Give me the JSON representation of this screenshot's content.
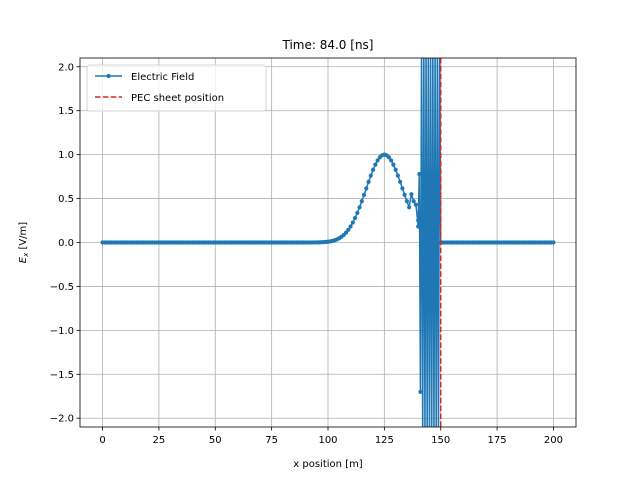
{
  "chart_data": {
    "type": "line",
    "title": "Time: 84.0 [ns]",
    "xlabel": "x position [m]",
    "ylabel_main": "E",
    "ylabel_sub": "x",
    "ylabel_unit": " [V/m]",
    "xlim": [
      -10,
      210
    ],
    "ylim": [
      -2.1,
      2.1
    ],
    "xticks": [
      0,
      25,
      50,
      75,
      100,
      125,
      150,
      175,
      200
    ],
    "yticks": [
      -2.0,
      -1.5,
      -1.0,
      -0.5,
      0.0,
      0.5,
      1.0,
      1.5,
      2.0
    ],
    "grid": true,
    "legend_position": "upper-left",
    "series": [
      {
        "name": "Electric Field",
        "color": "#1f77b4",
        "style": "solid-with-dots",
        "pulse": {
          "x_start": 0,
          "x_end": 140,
          "step": 1,
          "center": 125,
          "width": 11.5,
          "amplitude": 1.0
        },
        "oscillation": [
          [
            140,
            0.25
          ],
          [
            140.5,
            0.78
          ],
          [
            141,
            -1.7
          ],
          [
            141.5,
            2.3
          ],
          [
            142,
            -2.3
          ],
          [
            142.5,
            2.3
          ],
          [
            143,
            -2.3
          ],
          [
            143.5,
            2.3
          ],
          [
            144,
            -2.3
          ],
          [
            144.5,
            2.3
          ],
          [
            145,
            -2.3
          ],
          [
            145.5,
            2.3
          ],
          [
            146,
            -2.3
          ],
          [
            146.5,
            2.3
          ],
          [
            147,
            -2.3
          ],
          [
            147.5,
            2.3
          ],
          [
            148,
            -2.3
          ],
          [
            148.5,
            2.3
          ],
          [
            149,
            -2.3
          ],
          [
            149.5,
            2.3
          ],
          [
            150,
            0.0
          ]
        ],
        "tail": {
          "x_start": 150,
          "x_end": 200,
          "step": 1,
          "value": 0.0
        }
      },
      {
        "name": "PEC sheet position",
        "color": "#d62728",
        "style": "dashed",
        "x": 150
      }
    ]
  }
}
